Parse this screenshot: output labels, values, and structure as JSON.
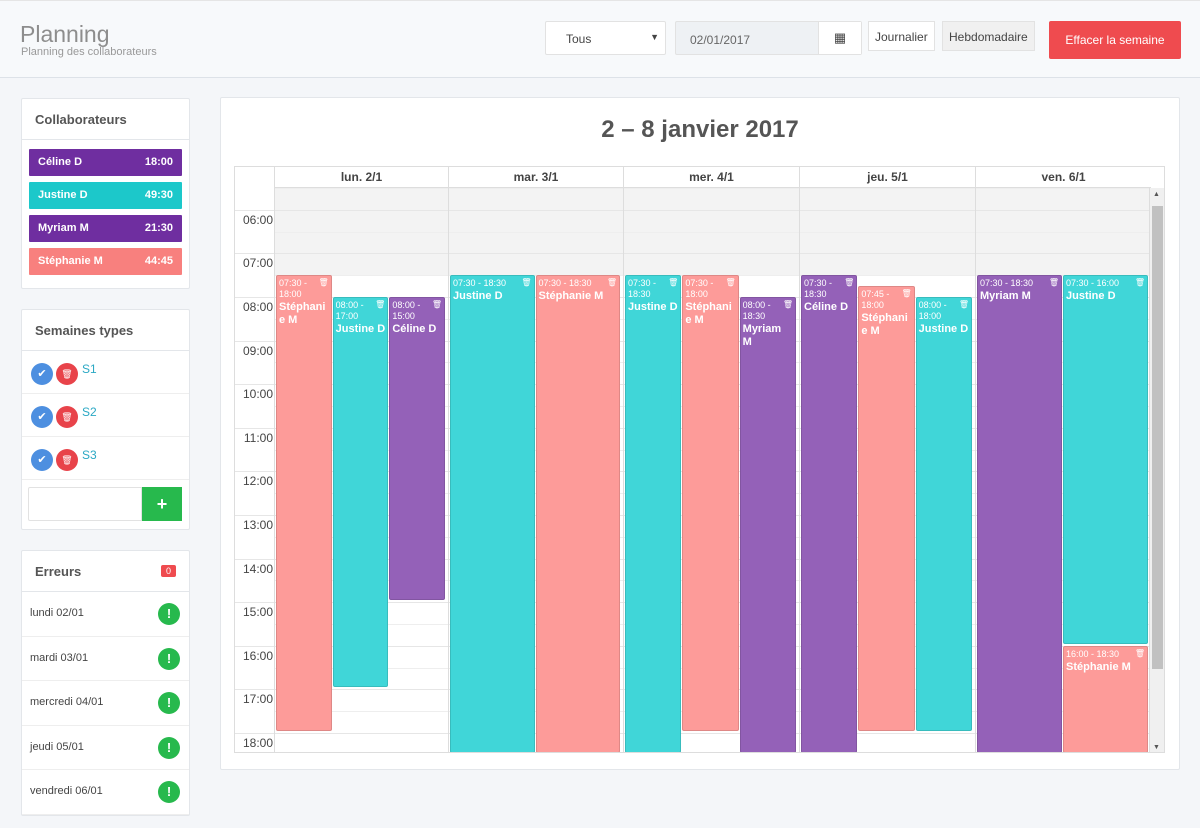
{
  "header": {
    "title": "Planning",
    "subtitle": "Planning des collaborateurs",
    "filter": "Tous",
    "date": "02/01/2017",
    "view_daily": "Journalier",
    "view_weekly": "Hebdomadaire",
    "clear_week": "Effacer la semaine"
  },
  "collaborators": {
    "title": "Collaborateurs",
    "items": [
      {
        "name": "Céline D",
        "hours": "18:00",
        "color": "#6f2ea0"
      },
      {
        "name": "Justine D",
        "hours": "49:30",
        "color": "#1cc8ca"
      },
      {
        "name": "Myriam M",
        "hours": "21:30",
        "color": "#6f2ea0"
      },
      {
        "name": "Stéphanie M",
        "hours": "44:45",
        "color": "#f8807e"
      }
    ]
  },
  "week_types": {
    "title": "Semaines types",
    "items": [
      {
        "label": "S1"
      },
      {
        "label": "S2"
      },
      {
        "label": "S3"
      }
    ],
    "new_value": ""
  },
  "errors": {
    "title": "Erreurs",
    "count": "0",
    "items": [
      {
        "day": "lundi 02/01"
      },
      {
        "day": "mardi 03/01"
      },
      {
        "day": "mercredi 04/01"
      },
      {
        "day": "jeudi 05/01"
      },
      {
        "day": "vendredi 06/01"
      }
    ]
  },
  "calendar": {
    "range": "2 – 8 janvier 2017",
    "days": [
      "lun. 2/1",
      "mar. 3/1",
      "mer. 4/1",
      "jeu. 5/1",
      "ven. 6/1"
    ],
    "hours": [
      "06:00",
      "07:00",
      "08:00",
      "09:00",
      "10:00",
      "11:00",
      "12:00",
      "13:00",
      "14:00",
      "15:00",
      "16:00",
      "17:00",
      "18:00"
    ],
    "colors": {
      "Stéphanie M": "#fd9b99",
      "Justine D": "#40d6d8",
      "Céline D": "#9461b8",
      "Myriam M": "#9461b8"
    },
    "events": [
      {
        "day": 0,
        "name": "Stéphanie M",
        "start": "07:30",
        "end": "18:00"
      },
      {
        "day": 0,
        "name": "Justine D",
        "start": "08:00",
        "end": "17:00"
      },
      {
        "day": 0,
        "name": "Céline D",
        "start": "08:00",
        "end": "15:00"
      },
      {
        "day": 1,
        "name": "Justine D",
        "start": "07:30",
        "end": "18:30"
      },
      {
        "day": 1,
        "name": "Stéphanie M",
        "start": "07:30",
        "end": "18:30"
      },
      {
        "day": 2,
        "name": "Justine D",
        "start": "07:30",
        "end": "18:30"
      },
      {
        "day": 2,
        "name": "Stéphanie M",
        "start": "07:30",
        "end": "18:00"
      },
      {
        "day": 2,
        "name": "Myriam M",
        "start": "08:00",
        "end": "18:30"
      },
      {
        "day": 3,
        "name": "Céline D",
        "start": "07:30",
        "end": "18:30"
      },
      {
        "day": 3,
        "name": "Stéphanie M",
        "start": "07:45",
        "end": "18:00"
      },
      {
        "day": 3,
        "name": "Justine D",
        "start": "08:00",
        "end": "18:00"
      },
      {
        "day": 4,
        "name": "Myriam M",
        "start": "07:30",
        "end": "18:30"
      },
      {
        "day": 4,
        "name": "Justine D",
        "start": "07:30",
        "end": "16:00"
      },
      {
        "day": 4,
        "name": "Stéphanie M",
        "start": "16:00",
        "end": "18:30"
      }
    ]
  }
}
